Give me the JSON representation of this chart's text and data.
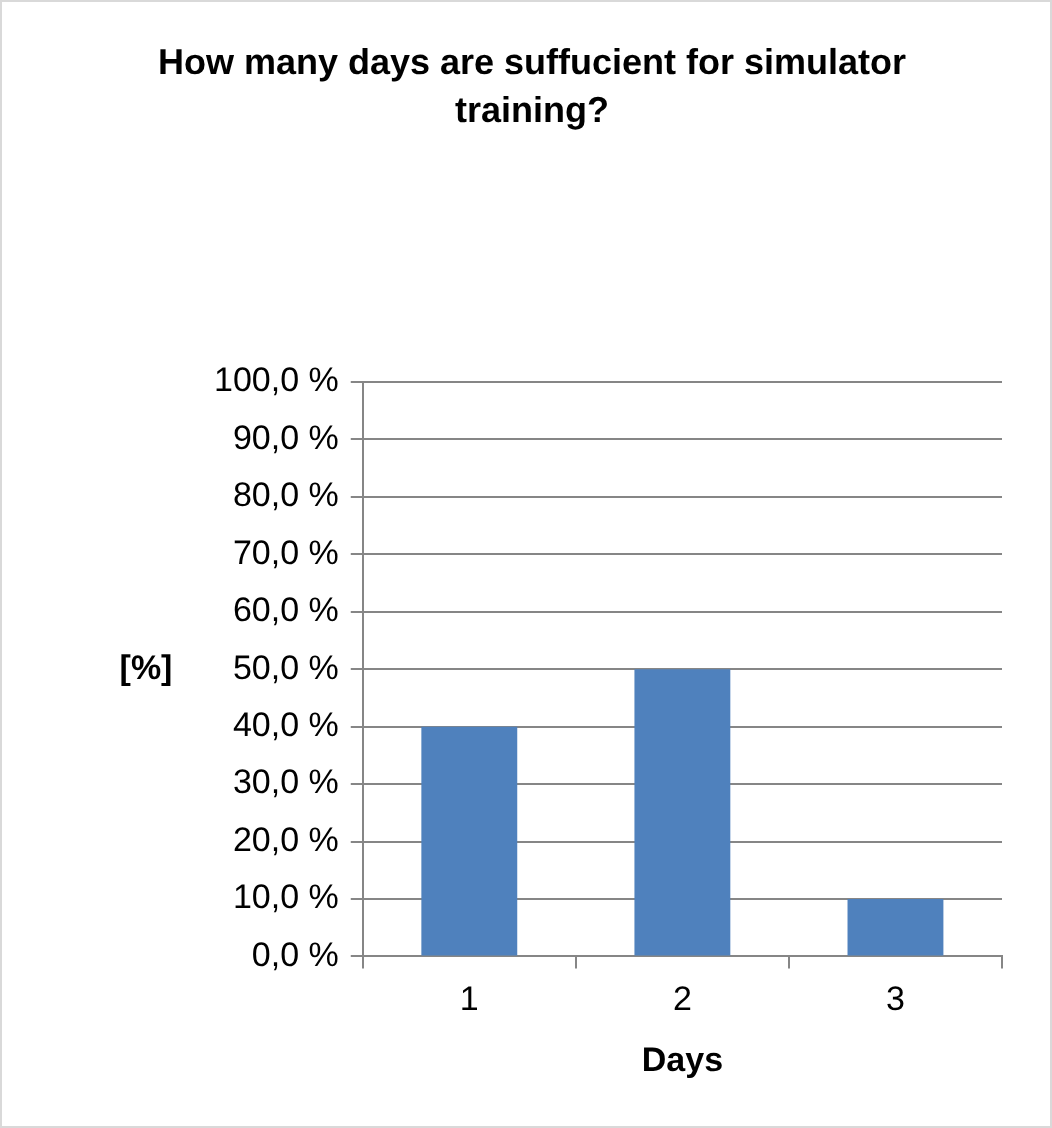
{
  "chart_data": {
    "type": "bar",
    "title": "How many days are suffucient for simulator training?",
    "xlabel": "Days",
    "ylabel": "[%]",
    "categories": [
      "1",
      "2",
      "3"
    ],
    "values": [
      40,
      50,
      10
    ],
    "color": "#4f81bd",
    "ylim": [
      0,
      100
    ],
    "yticks": [
      {
        "value": 0,
        "label": "0,0 %"
      },
      {
        "value": 10,
        "label": "10,0 %"
      },
      {
        "value": 20,
        "label": "20,0 %"
      },
      {
        "value": 30,
        "label": "30,0 %"
      },
      {
        "value": 40,
        "label": "40,0 %"
      },
      {
        "value": 50,
        "label": "50,0 %"
      },
      {
        "value": 60,
        "label": "60,0 %"
      },
      {
        "value": 70,
        "label": "70,0 %"
      },
      {
        "value": 80,
        "label": "80,0 %"
      },
      {
        "value": 90,
        "label": "90,0 %"
      },
      {
        "value": 100,
        "label": "100,0 %"
      }
    ],
    "grid": "y",
    "legend": false
  }
}
